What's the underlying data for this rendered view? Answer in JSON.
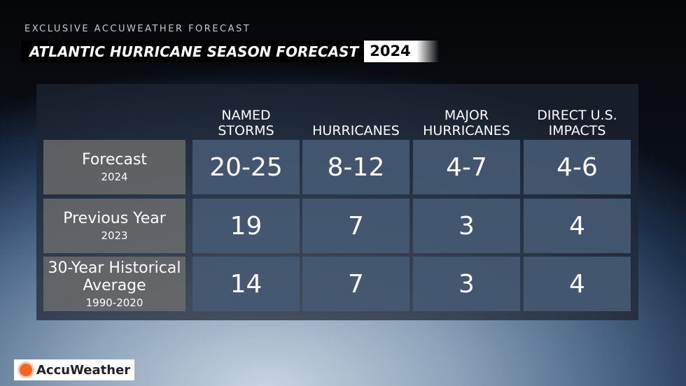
{
  "header": {
    "kicker": "EXCLUSIVE ACCUWEATHER FORECAST",
    "title": "ATLANTIC HURRICANE SEASON FORECAST",
    "year": "2024"
  },
  "table": {
    "columns": [
      "NAMED STORMS",
      "HURRICANES",
      "MAJOR HURRICANES",
      "DIRECT U.S. IMPACTS"
    ],
    "rows": [
      {
        "label": "Forecast",
        "sublabel": "2024",
        "values": [
          "20-25",
          "8-12",
          "4-7",
          "4-6"
        ]
      },
      {
        "label": "Previous Year",
        "sublabel": "2023",
        "values": [
          19,
          7,
          3,
          4
        ]
      },
      {
        "label": "30-Year Historical Average",
        "sublabel": "1990-2020",
        "values": [
          14,
          7,
          3,
          4
        ]
      }
    ]
  },
  "logo": {
    "text": "AccuWeather"
  }
}
